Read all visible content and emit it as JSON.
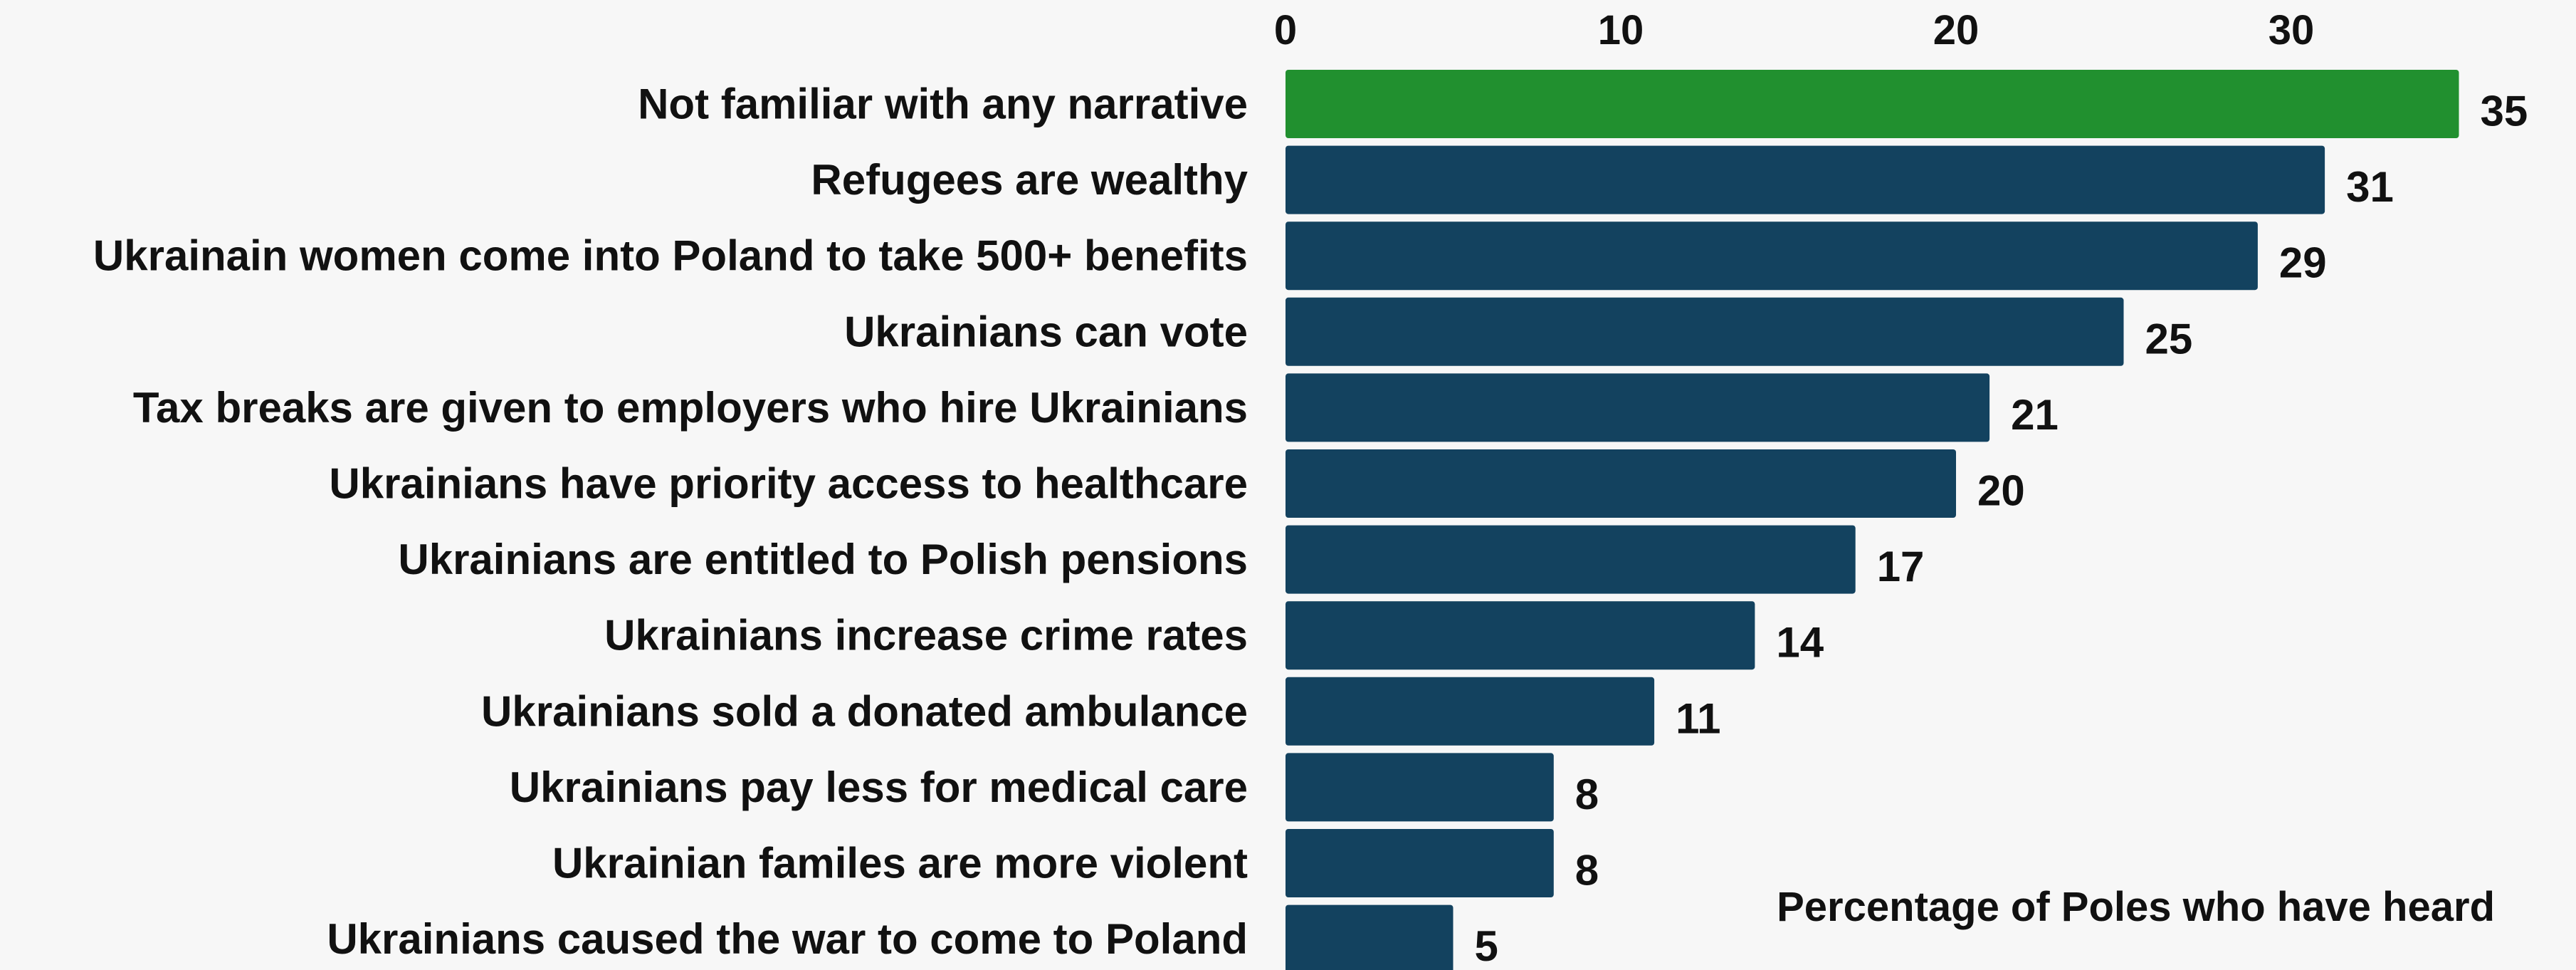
{
  "chart_data": {
    "type": "bar",
    "orientation": "horizontal",
    "categories": [
      "Not familiar with any narrative",
      "Refugees are wealthy",
      "Ukrainain women come into Poland to take 500+ benefits",
      "Ukrainians can vote",
      "Tax breaks are given to employers who hire Ukrainians",
      "Ukrainians have priority access to healthcare",
      "Ukrainians are entitled to Polish pensions",
      "Ukrainians increase crime rates",
      "Ukrainians sold a donated ambulance",
      "Ukrainians pay less for medical care",
      "Ukrainian familes are more violent",
      "Ukrainians caused the war to come to Poland"
    ],
    "values": [
      35,
      31,
      29,
      25,
      21,
      20,
      17,
      14,
      11,
      8,
      8,
      5
    ],
    "xticks": [
      0,
      10,
      20,
      30
    ],
    "xlim": [
      0,
      38
    ],
    "xlabel": "Percentage of Poles who have heard",
    "tick_position": "top",
    "grid": false,
    "highlight_index": 0,
    "colors": {
      "highlight": "#21902f",
      "default": "#13425f"
    }
  }
}
